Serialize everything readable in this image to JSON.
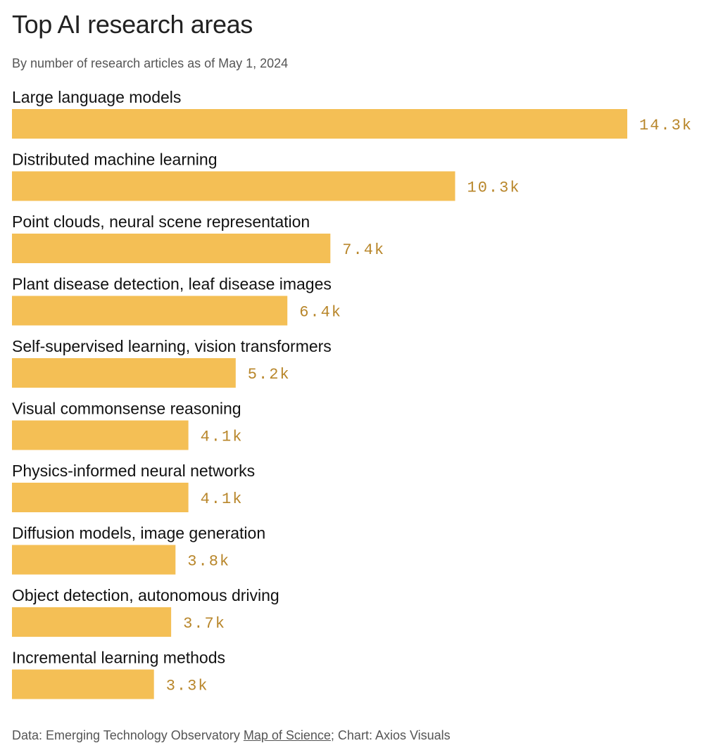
{
  "colors": {
    "bar": "#f4bf55",
    "value_label": "#b8862a"
  },
  "chart_data": {
    "type": "bar",
    "orientation": "horizontal",
    "title": "Top AI research areas",
    "subtitle": "By number of research articles as of May 1, 2024",
    "categories": [
      "Large language models",
      "Distributed machine learning",
      "Point clouds, neural scene representation",
      "Plant disease detection, leaf disease images",
      "Self-supervised learning, vision transformers",
      "Visual commonsense reasoning",
      "Physics-informed neural networks",
      "Diffusion models, image generation",
      "Object detection, autonomous driving",
      "Incremental learning methods"
    ],
    "values": [
      14.3,
      10.3,
      7.4,
      6.4,
      5.2,
      4.1,
      4.1,
      3.8,
      3.7,
      3.3
    ],
    "value_labels": [
      "14.3k",
      "10.3k",
      "7.4k",
      "6.4k",
      "5.2k",
      "4.1k",
      "4.1k",
      "3.8k",
      "3.7k",
      "3.3k"
    ],
    "value_unit": "thousand articles",
    "grid": false,
    "legend": "none"
  },
  "footer": {
    "prefix": "Data: Emerging Technology Observatory ",
    "link": "Map of Science",
    "suffix": "; Chart: Axios Visuals"
  }
}
